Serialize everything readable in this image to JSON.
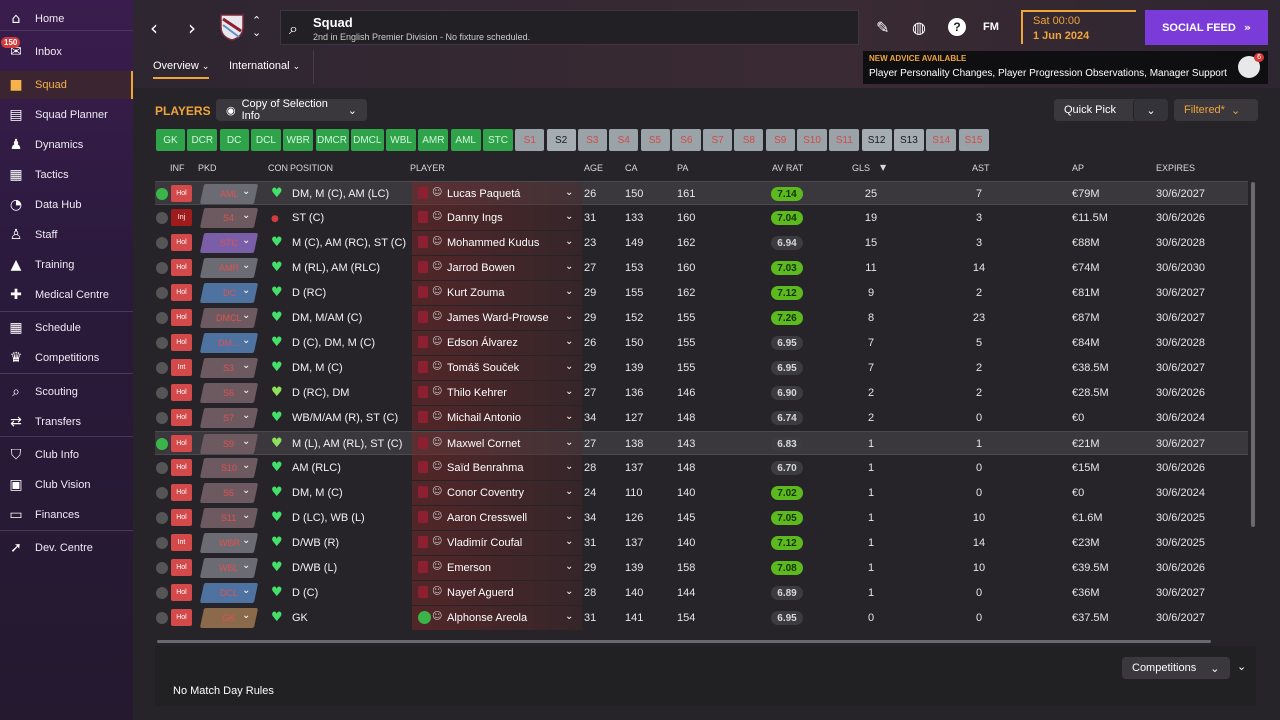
{
  "sidebar": {
    "items": [
      {
        "label": "Home",
        "icon": "home-icon",
        "glyph": "⌂"
      },
      {
        "label": "Inbox",
        "icon": "inbox-icon",
        "glyph": "✉",
        "badge": "150"
      },
      {
        "label": "Squad",
        "icon": "squad-icon",
        "glyph": "■"
      },
      {
        "label": "Squad Planner",
        "icon": "squad-planner-icon",
        "glyph": "▤"
      },
      {
        "label": "Dynamics",
        "icon": "dynamics-icon",
        "glyph": "♟"
      },
      {
        "label": "Tactics",
        "icon": "tactics-icon",
        "glyph": "▦"
      },
      {
        "label": "Data Hub",
        "icon": "data-hub-icon",
        "glyph": "◔"
      },
      {
        "label": "Staff",
        "icon": "staff-icon",
        "glyph": "♙"
      },
      {
        "label": "Training",
        "icon": "training-icon",
        "glyph": "▲"
      },
      {
        "label": "Medical Centre",
        "icon": "medical-icon",
        "glyph": "✚"
      },
      {
        "label": "Schedule",
        "icon": "schedule-icon",
        "glyph": "▦"
      },
      {
        "label": "Competitions",
        "icon": "trophy-icon",
        "glyph": "♛"
      },
      {
        "label": "Scouting",
        "icon": "scouting-icon",
        "glyph": "⌕"
      },
      {
        "label": "Transfers",
        "icon": "transfers-icon",
        "glyph": "⇄"
      },
      {
        "label": "Club Info",
        "icon": "club-info-icon",
        "glyph": "⛉"
      },
      {
        "label": "Club Vision",
        "icon": "club-vision-icon",
        "glyph": "▣"
      },
      {
        "label": "Finances",
        "icon": "finances-icon",
        "glyph": "▭"
      },
      {
        "label": "Dev. Centre",
        "icon": "dev-centre-icon",
        "glyph": "➚"
      }
    ]
  },
  "header": {
    "title": "Squad",
    "subtitle": "2nd in English Premier Division - No fixture scheduled.",
    "day": "Sat 00:00",
    "date": "1 Jun 2024",
    "social": "SOCIAL FEED",
    "fm": "FM"
  },
  "advice": {
    "title": "NEW ADVICE AVAILABLE",
    "text": "Player Personality Changes, Player Progression Observations, Manager Support",
    "badge": "6"
  },
  "tabs": {
    "overview": "Overview",
    "international": "International"
  },
  "toolbar": {
    "players": "PLAYERS",
    "copy": "Copy of Selection Info",
    "quickpick": "Quick Pick",
    "filtered": "Filtered*"
  },
  "positions": [
    {
      "l": "GK",
      "s": "on"
    },
    {
      "l": "DCR",
      "s": "on"
    },
    {
      "l": "DC",
      "s": "on"
    },
    {
      "l": "DCL",
      "s": "on"
    },
    {
      "l": "WBR",
      "s": "on"
    },
    {
      "l": "DMCR",
      "s": "on"
    },
    {
      "l": "DMCL",
      "s": "on"
    },
    {
      "l": "WBL",
      "s": "on"
    },
    {
      "l": "AMR",
      "s": "on"
    },
    {
      "l": "AML",
      "s": "on"
    },
    {
      "l": "STC",
      "s": "on"
    },
    {
      "l": "S1",
      "s": "off"
    },
    {
      "l": "S2",
      "s": "grey"
    },
    {
      "l": "S3",
      "s": "off"
    },
    {
      "l": "S4",
      "s": "off"
    },
    {
      "l": "S5",
      "s": "off"
    },
    {
      "l": "S6",
      "s": "off"
    },
    {
      "l": "S7",
      "s": "off"
    },
    {
      "l": "S8",
      "s": "off"
    },
    {
      "l": "S9",
      "s": "off"
    },
    {
      "l": "S10",
      "s": "off"
    },
    {
      "l": "S11",
      "s": "off"
    },
    {
      "l": "S12",
      "s": "grey"
    },
    {
      "l": "S13",
      "s": "grey"
    },
    {
      "l": "S14",
      "s": "off"
    },
    {
      "l": "S15",
      "s": "off"
    }
  ],
  "columns": {
    "inf": "INF",
    "pkd": "PKD",
    "con": "CON",
    "position": "POSITION",
    "player": "PLAYER",
    "age": "AGE",
    "ca": "CA",
    "pa": "PA",
    "avrat": "AV RAT",
    "gls": "GLS",
    "ast": "AST",
    "ap": "AP",
    "expires": "EXPIRES"
  },
  "players": [
    {
      "inf": "Hol",
      "pkd": "AML",
      "pc": "#6b6b74",
      "ptc": "#e25050",
      "con": "ok",
      "pos": "DM, M (C), AM (LC)",
      "name": "Lucas Paquetá",
      "age": "26",
      "ca": "150",
      "pa": "161",
      "av": "7.14",
      "avg": true,
      "gls": "25",
      "ast": "7",
      "ap": "€79M",
      "exp": "30/6/2027",
      "sel": true
    },
    {
      "inf": "Inj",
      "pkd": "S4",
      "pc": "#6d5a61",
      "ptc": "#e25050",
      "con": "bad",
      "pos": "ST (C)",
      "name": "Danny Ings",
      "age": "31",
      "ca": "133",
      "pa": "160",
      "av": "7.04",
      "avg": true,
      "gls": "19",
      "ast": "3",
      "ap": "€11.5M",
      "exp": "30/6/2026"
    },
    {
      "inf": "Hol",
      "pkd": "STC",
      "pc": "#7a5fa8",
      "ptc": "#e25050",
      "con": "ok",
      "pos": "M (C), AM (RC), ST (C)",
      "name": "Mohammed Kudus",
      "age": "23",
      "ca": "149",
      "pa": "162",
      "av": "6.94",
      "avg": false,
      "gls": "15",
      "ast": "3",
      "ap": "€88M",
      "exp": "30/6/2028"
    },
    {
      "inf": "Hol",
      "pkd": "AMR",
      "pc": "#6b6b74",
      "ptc": "#e25050",
      "con": "ok",
      "pos": "M (RL), AM (RLC)",
      "name": "Jarrod Bowen",
      "age": "27",
      "ca": "153",
      "pa": "160",
      "av": "7.03",
      "avg": true,
      "gls": "11",
      "ast": "14",
      "ap": "€74M",
      "exp": "30/6/2030"
    },
    {
      "inf": "Hol",
      "pkd": "DC",
      "pc": "#4f73a0",
      "ptc": "#e25050",
      "con": "ok",
      "pos": "D (RC)",
      "name": "Kurt Zouma",
      "age": "29",
      "ca": "155",
      "pa": "162",
      "av": "7.12",
      "avg": true,
      "gls": "9",
      "ast": "2",
      "ap": "€81M",
      "exp": "30/6/2027"
    },
    {
      "inf": "Hol",
      "pkd": "DMCL",
      "pc": "#6d5a61",
      "ptc": "#e25050",
      "con": "ok",
      "pos": "DM, M/AM (C)",
      "name": "James Ward-Prowse",
      "age": "29",
      "ca": "152",
      "pa": "155",
      "av": "7.26",
      "avg": true,
      "gls": "8",
      "ast": "23",
      "ap": "€87M",
      "exp": "30/6/2027"
    },
    {
      "inf": "Hol",
      "pkd": "DM...",
      "pc": "#4f73a0",
      "ptc": "#e25050",
      "con": "ok",
      "pos": "D (C), DM, M (C)",
      "name": "Edson Álvarez",
      "age": "26",
      "ca": "150",
      "pa": "155",
      "av": "6.95",
      "avg": false,
      "gls": "7",
      "ast": "5",
      "ap": "€84M",
      "exp": "30/6/2028"
    },
    {
      "inf": "Int",
      "pkd": "S3",
      "pc": "#6d5a61",
      "ptc": "#e25050",
      "con": "ok",
      "pos": "DM, M (C)",
      "name": "Tomáš Souček",
      "age": "29",
      "ca": "139",
      "pa": "155",
      "av": "6.95",
      "avg": false,
      "gls": "7",
      "ast": "2",
      "ap": "€38.5M",
      "exp": "30/6/2027"
    },
    {
      "inf": "Hol",
      "pkd": "S6",
      "pc": "#6d5a61",
      "ptc": "#e25050",
      "con": "ok2",
      "pos": "D (RC), DM",
      "name": "Thilo Kehrer",
      "age": "27",
      "ca": "136",
      "pa": "146",
      "av": "6.90",
      "avg": false,
      "gls": "2",
      "ast": "2",
      "ap": "€28.5M",
      "exp": "30/6/2026"
    },
    {
      "inf": "Hol",
      "pkd": "S7",
      "pc": "#6d5a61",
      "ptc": "#e25050",
      "con": "ok",
      "pos": "WB/M/AM (R), ST (C)",
      "name": "Michail Antonio",
      "age": "34",
      "ca": "127",
      "pa": "148",
      "av": "6.74",
      "avg": false,
      "gls": "2",
      "ast": "0",
      "ap": "€0",
      "exp": "30/6/2024"
    },
    {
      "inf": "Hol",
      "pkd": "S9",
      "pc": "#6d5a61",
      "ptc": "#e25050",
      "con": "ok2",
      "pos": "M (L), AM (RL), ST (C)",
      "name": "Maxwel Cornet",
      "age": "27",
      "ca": "138",
      "pa": "143",
      "av": "6.83",
      "avg": false,
      "gls": "1",
      "ast": "1",
      "ap": "€21M",
      "exp": "30/6/2027",
      "sel": true
    },
    {
      "inf": "Hol",
      "pkd": "S10",
      "pc": "#6d5a61",
      "ptc": "#e25050",
      "con": "ok",
      "pos": "AM (RLC)",
      "name": "Saïd Benrahma",
      "age": "28",
      "ca": "137",
      "pa": "148",
      "av": "6.70",
      "avg": false,
      "gls": "1",
      "ast": "0",
      "ap": "€15M",
      "exp": "30/6/2026"
    },
    {
      "inf": "Hol",
      "pkd": "S5",
      "pc": "#6d5a61",
      "ptc": "#e25050",
      "con": "ok",
      "pos": "DM, M (C)",
      "name": "Conor Coventry",
      "age": "24",
      "ca": "110",
      "pa": "140",
      "av": "7.02",
      "avg": true,
      "gls": "1",
      "ast": "0",
      "ap": "€0",
      "exp": "30/6/2024"
    },
    {
      "inf": "Hol",
      "pkd": "S11",
      "pc": "#6d5a61",
      "ptc": "#e25050",
      "con": "ok",
      "pos": "D (LC), WB (L)",
      "name": "Aaron Cresswell",
      "age": "34",
      "ca": "126",
      "pa": "145",
      "av": "7.05",
      "avg": true,
      "gls": "1",
      "ast": "10",
      "ap": "€1.6M",
      "exp": "30/6/2025"
    },
    {
      "inf": "Int",
      "pkd": "WBR",
      "pc": "#6b6b74",
      "ptc": "#e25050",
      "con": "ok",
      "pos": "D/WB (R)",
      "name": "Vladimír Coufal",
      "age": "31",
      "ca": "137",
      "pa": "140",
      "av": "7.12",
      "avg": true,
      "gls": "1",
      "ast": "14",
      "ap": "€23M",
      "exp": "30/6/2025"
    },
    {
      "inf": "Hol",
      "pkd": "WBL",
      "pc": "#6b6b74",
      "ptc": "#e25050",
      "con": "ok",
      "pos": "D/WB (L)",
      "name": "Emerson",
      "age": "29",
      "ca": "139",
      "pa": "158",
      "av": "7.08",
      "avg": true,
      "gls": "1",
      "ast": "10",
      "ap": "€39.5M",
      "exp": "30/6/2026"
    },
    {
      "inf": "Hol",
      "pkd": "DCL",
      "pc": "#4f73a0",
      "ptc": "#e25050",
      "con": "ok",
      "pos": "D (C)",
      "name": "Nayef Aguerd",
      "age": "28",
      "ca": "140",
      "pa": "144",
      "av": "6.89",
      "avg": false,
      "gls": "1",
      "ast": "0",
      "ap": "€36M",
      "exp": "30/6/2027"
    },
    {
      "inf": "Hol",
      "pkd": "GK",
      "pc": "#8a6a4a",
      "ptc": "#e25050",
      "con": "ok",
      "pos": "GK",
      "name": "Alphonse Areola",
      "age": "31",
      "ca": "141",
      "pa": "154",
      "av": "6.95",
      "avg": false,
      "gls": "0",
      "ast": "0",
      "ap": "€37.5M",
      "exp": "30/6/2027",
      "gk": true
    }
  ],
  "bottom": {
    "competitions": "Competitions",
    "rules": "No Match Day Rules"
  }
}
